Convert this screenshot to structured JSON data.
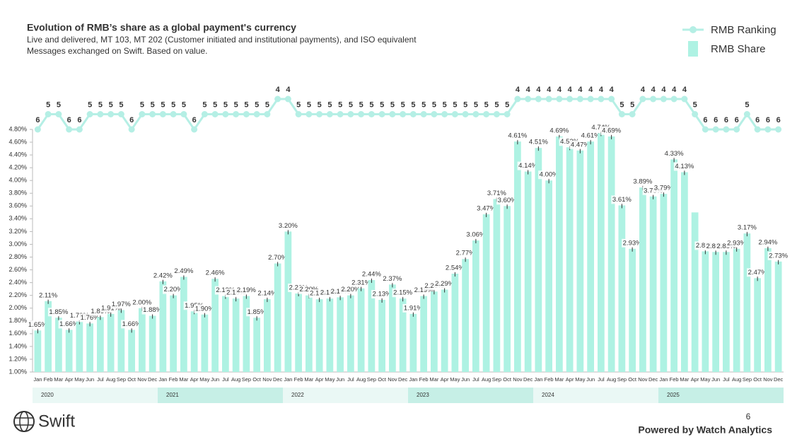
{
  "chart_data": {
    "type": "bar",
    "title": "Evolution of RMB’s share as a global payment's currency",
    "subtitle": [
      "Live and delivered, MT 103, MT 202 (Customer initiated and institutional payments), and ISO equivalent",
      "Messages exchanged on Swift. Based on value."
    ],
    "categories": [
      "Jan",
      "Feb",
      "Mar",
      "Apr",
      "May",
      "Jun",
      "Jul",
      "Aug",
      "Sep",
      "Oct",
      "Nov",
      "Dec",
      "Jan",
      "Feb",
      "Mar",
      "Apr",
      "May",
      "Jun",
      "Jul",
      "Aug",
      "Sep",
      "Oct",
      "Nov",
      "Dec",
      "Jan",
      "Feb",
      "Mar",
      "Apr",
      "May",
      "Jun",
      "Jul",
      "Aug",
      "Sep",
      "Oct",
      "Nov",
      "Dec",
      "Jan",
      "Feb",
      "Mar",
      "Apr",
      "May",
      "Jun",
      "Jul",
      "Aug",
      "Sep",
      "Oct",
      "Nov",
      "Dec",
      "Jan",
      "Feb",
      "Mar",
      "Apr",
      "May",
      "Jun",
      "Jul",
      "Aug",
      "Sep",
      "Oct",
      "Nov",
      "Dec",
      "Jan",
      "Feb",
      "Mar",
      "Apr",
      "May",
      "Jun",
      "Jul",
      "Aug",
      "Sep",
      "Oct",
      "Nov",
      "Dec"
    ],
    "years": [
      "2020",
      "2021",
      "2022",
      "2023",
      "2024",
      "2025"
    ],
    "series": [
      {
        "name": "RMB Share",
        "color": "#aef2e3",
        "values": [
          1.65,
          2.11,
          1.85,
          1.66,
          1.79,
          1.76,
          1.86,
          1.91,
          1.97,
          1.66,
          2.0,
          1.88,
          2.42,
          2.2,
          2.49,
          1.95,
          1.9,
          2.46,
          2.19,
          2.15,
          2.19,
          1.85,
          2.14,
          2.7,
          3.2,
          2.23,
          2.2,
          2.14,
          2.15,
          2.17,
          2.2,
          2.31,
          2.44,
          2.13,
          2.37,
          2.15,
          1.91,
          2.19,
          2.26,
          2.29,
          2.54,
          2.77,
          3.06,
          3.47,
          3.71,
          3.6,
          4.61,
          4.14,
          4.51,
          4.0,
          4.69,
          4.52,
          4.47,
          4.61,
          4.74,
          4.69,
          3.61,
          2.93,
          3.89,
          3.75,
          3.79,
          4.33,
          4.13,
          3.5,
          2.89,
          2.88,
          2.88,
          2.93,
          3.17,
          2.47,
          2.94,
          2.73
        ],
        "value_labels": [
          "1.65%",
          "2.11%",
          "1.85%",
          "1.66%",
          "1.79%",
          "1.76%",
          "1.86%",
          "1.91%",
          "1.97%",
          "1.66%",
          "2.00%",
          "1.88%",
          "2.42%",
          "2.20%",
          "2.49%",
          "1.95%",
          "1.90%",
          "2.46%",
          "2.19%",
          "2.15%",
          "2.19%",
          "1.85%",
          "2.14%",
          "2.70%",
          "3.20%",
          "2.23%",
          "2.20%",
          "2.14%",
          "2.15%",
          "2.17%",
          "2.20%",
          "2.31%",
          "2.44%",
          "2.13%",
          "2.37%",
          "2.15%",
          "1.91%",
          "2.19%",
          "2.26%",
          "2.29%",
          "2.54%",
          "2.77%",
          "3.06%",
          "3.47%",
          "3.71%",
          "3.60%",
          "4.61%",
          "4.14%",
          "4.51%",
          "4.00%",
          "4.69%",
          "4.52%",
          "4.47%",
          "4.61%",
          "4.74%",
          "4.69%",
          "3.61%",
          "2.93%",
          "3.89%",
          "3.75%",
          "3.79%",
          "4.33%",
          "4.13%",
          null,
          "2.89%",
          "2.88%",
          "2.88%",
          "2.93%",
          "3.17%",
          "2.47%",
          "2.94%",
          "2.73%"
        ]
      },
      {
        "name": "RMB Ranking",
        "color": "#b5efe5",
        "axis": "y2",
        "values": [
          6,
          5,
          5,
          6,
          6,
          5,
          5,
          5,
          5,
          6,
          5,
          5,
          5,
          5,
          5,
          6,
          5,
          5,
          5,
          5,
          5,
          5,
          5,
          4,
          4,
          5,
          5,
          5,
          5,
          5,
          5,
          5,
          5,
          5,
          5,
          5,
          5,
          5,
          5,
          5,
          5,
          5,
          5,
          5,
          5,
          5,
          4,
          4,
          4,
          4,
          4,
          4,
          4,
          4,
          4,
          4,
          5,
          5,
          4,
          4,
          4,
          4,
          4,
          5,
          6,
          6,
          6,
          6,
          5,
          6,
          6,
          6
        ]
      }
    ],
    "ylim": [
      1.0,
      4.8
    ],
    "yticks": [
      {
        "value": 1.0,
        "label": "1.00%"
      },
      {
        "value": 1.2,
        "label": "1.20%"
      },
      {
        "value": 1.4,
        "label": "1.40%"
      },
      {
        "value": 1.6,
        "label": "1.60%"
      },
      {
        "value": 1.8,
        "label": "1.80%"
      },
      {
        "value": 2.0,
        "label": "2.00%"
      },
      {
        "value": 2.2,
        "label": "2.20%"
      },
      {
        "value": 2.4,
        "label": "2.40%"
      },
      {
        "value": 2.6,
        "label": "2.60%"
      },
      {
        "value": 2.8,
        "label": "2.80%"
      },
      {
        "value": 3.0,
        "label": "3.00%"
      },
      {
        "value": 3.2,
        "label": "3.20%"
      },
      {
        "value": 3.4,
        "label": "3.40%"
      },
      {
        "value": 3.6,
        "label": "3.60%"
      },
      {
        "value": 3.8,
        "label": "3.80%"
      },
      {
        "value": 4.0,
        "label": "4.00%"
      },
      {
        "value": 4.2,
        "label": "4.20%"
      },
      {
        "value": 4.4,
        "label": "4.40%"
      },
      {
        "value": 4.6,
        "label": "4.60%"
      },
      {
        "value": 4.8,
        "label": "4.80%"
      }
    ],
    "y2lim": [
      6,
      4
    ],
    "legend": "top-right"
  },
  "page_number": "6",
  "footer": "Powered by Watch Analytics",
  "logo": "Swift"
}
